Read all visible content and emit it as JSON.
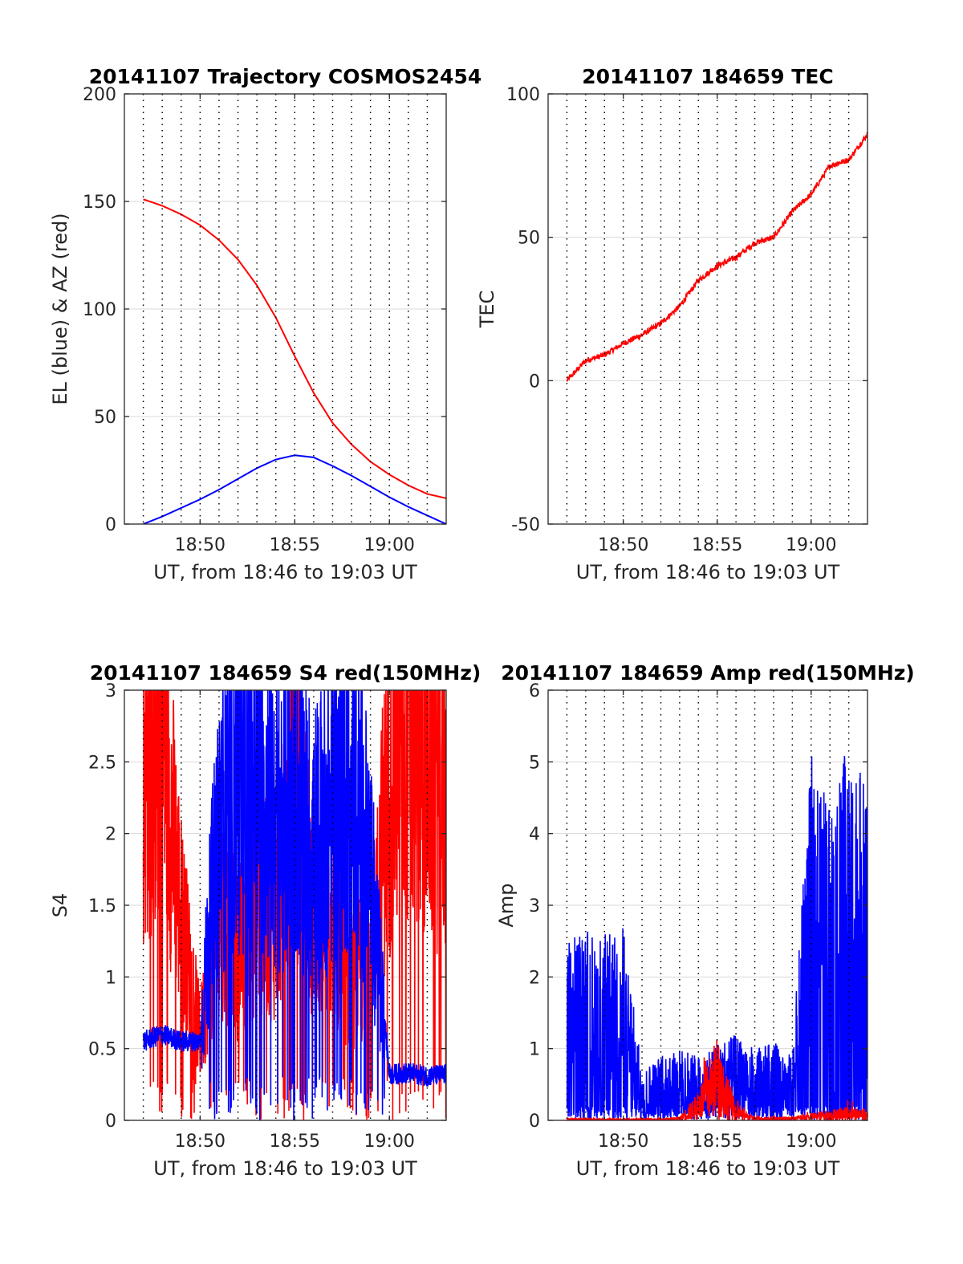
{
  "colors": {
    "red": "#ff0000",
    "blue": "#0000ff",
    "axis": "#262626",
    "grid": "#d9d9d9"
  },
  "chart_data": [
    {
      "type": "line",
      "title": "20141107 Trajectory COSMOS2454",
      "xlabel": "UT, from 18:46 to 19:03 UT",
      "ylabel": "EL (blue) & AZ (red)",
      "xlim": [
        "18:46",
        "19:03"
      ],
      "ylim": [
        0,
        200
      ],
      "xticks": [
        "18:50",
        "18:55",
        "19:00"
      ],
      "yticks": [
        0,
        50,
        100,
        150,
        200
      ],
      "grid": {
        "x": "dotted every minute",
        "y": "solid"
      },
      "series": [
        {
          "color": "red",
          "x": [
            "18:47",
            "18:48",
            "18:49",
            "18:50",
            "18:51",
            "18:52",
            "18:53",
            "18:54",
            "18:55",
            "18:56",
            "18:57",
            "18:58",
            "18:59",
            "19:00",
            "19:01",
            "19:02",
            "19:03"
          ],
          "y": [
            151,
            148,
            144,
            139,
            132,
            123,
            111,
            96,
            78,
            61,
            47,
            37,
            29,
            23,
            18,
            14,
            12
          ]
        },
        {
          "color": "blue",
          "x": [
            "18:47",
            "18:48",
            "18:49",
            "18:50",
            "18:51",
            "18:52",
            "18:53",
            "18:54",
            "18:55",
            "18:56",
            "18:57",
            "18:58",
            "18:59",
            "19:00",
            "19:01",
            "19:02",
            "19:03"
          ],
          "y": [
            0,
            3.5,
            7.5,
            11.5,
            16,
            21,
            26,
            30,
            32,
            31,
            27,
            22.5,
            17.5,
            12.5,
            8,
            4,
            0
          ]
        }
      ]
    },
    {
      "type": "line",
      "title": "20141107 184659 TEC",
      "xlabel": "UT, from 18:46 to 19:03 UT",
      "ylabel": "TEC",
      "xlim": [
        "18:46",
        "19:03"
      ],
      "ylim": [
        -50,
        100
      ],
      "xticks": [
        "18:50",
        "18:55",
        "19:00"
      ],
      "yticks": [
        -50,
        0,
        50,
        100
      ],
      "grid": {
        "x": "dotted every minute",
        "y": "solid"
      },
      "series": [
        {
          "color": "red",
          "x": [
            "18:47",
            "18:48",
            "18:49",
            "18:50",
            "18:51",
            "18:52",
            "18:53",
            "18:54",
            "18:55",
            "18:56",
            "18:57",
            "18:58",
            "18:59",
            "19:00",
            "19:01",
            "19:02",
            "19:03"
          ],
          "y": [
            0,
            7,
            9,
            13,
            16,
            20,
            26,
            35,
            40,
            43,
            48,
            50,
            59,
            65,
            75,
            77,
            86
          ]
        }
      ]
    },
    {
      "type": "line",
      "title": "20141107 184659 S4 red(150MHz)",
      "xlabel": "UT, from 18:46 to 19:03 UT",
      "ylabel": "S4",
      "xlim": [
        "18:46",
        "19:03"
      ],
      "ylim": [
        0,
        3
      ],
      "xticks": [
        "18:50",
        "18:55",
        "19:00"
      ],
      "yticks": [
        0,
        0.5,
        1,
        1.5,
        2,
        2.5,
        3
      ],
      "grid": {
        "x": "dotted every minute",
        "y": "solid"
      },
      "series": [
        {
          "color": "red",
          "x": [
            "18:47",
            "18:48",
            "18:49",
            "18:50",
            "18:51",
            "18:52",
            "18:53",
            "18:54",
            "18:55",
            "18:56",
            "18:57",
            "18:58",
            "18:59",
            "19:00",
            "19:01",
            "19:02",
            "19:03"
          ],
          "y": [
            2.6,
            2.9,
            1.5,
            0.6,
            1.6,
            1.2,
            1.6,
            1.5,
            2.5,
            1.5,
            1.4,
            1.0,
            1.2,
            2.5,
            2.9,
            2.7,
            2.4
          ]
        },
        {
          "color": "blue",
          "x": [
            "18:47",
            "18:48",
            "18:49",
            "18:50",
            "18:51",
            "18:52",
            "18:53",
            "18:54",
            "18:55",
            "18:56",
            "18:57",
            "18:58",
            "18:59",
            "19:00",
            "19:01",
            "19:02",
            "19:03"
          ],
          "y": [
            0.55,
            0.6,
            0.55,
            0.55,
            2.2,
            2.5,
            2.6,
            2.2,
            2.4,
            2.0,
            2.3,
            2.6,
            1.8,
            0.32,
            0.33,
            0.31,
            0.32
          ]
        }
      ]
    },
    {
      "type": "line",
      "title": "20141107 184659 Amp red(150MHz)",
      "xlabel": "UT, from 18:46 to 19:03 UT",
      "ylabel": "Amp",
      "xlim": [
        "18:46",
        "19:03"
      ],
      "ylim": [
        0,
        6
      ],
      "xticks": [
        "18:50",
        "18:55",
        "19:00"
      ],
      "yticks": [
        0,
        1,
        2,
        3,
        4,
        5,
        6
      ],
      "grid": {
        "x": "dotted every minute",
        "y": "solid"
      },
      "series": [
        {
          "color": "blue",
          "x": [
            "18:47",
            "18:48",
            "18:49",
            "18:50",
            "18:51",
            "18:52",
            "18:53",
            "18:54",
            "18:55",
            "18:56",
            "18:57",
            "18:58",
            "18:59",
            "19:00",
            "19:01",
            "19:02",
            "19:03"
          ],
          "y": [
            2.5,
            2.7,
            2.6,
            2.7,
            0.7,
            0.9,
            1.0,
            0.9,
            1.1,
            1.2,
            1.0,
            1.1,
            0.9,
            5.1,
            4.5,
            5.3,
            4.6
          ]
        },
        {
          "color": "red",
          "x": [
            "18:47",
            "18:48",
            "18:49",
            "18:50",
            "18:51",
            "18:52",
            "18:53",
            "18:54",
            "18:55",
            "18:56",
            "18:57",
            "18:58",
            "18:59",
            "19:00",
            "19:01",
            "19:02",
            "19:03"
          ],
          "y": [
            0.02,
            0.03,
            0.02,
            0.02,
            0.02,
            0.03,
            0.05,
            0.4,
            1.2,
            0.2,
            0.05,
            0.05,
            0.05,
            0.1,
            0.15,
            0.2,
            0.15
          ]
        }
      ]
    }
  ]
}
